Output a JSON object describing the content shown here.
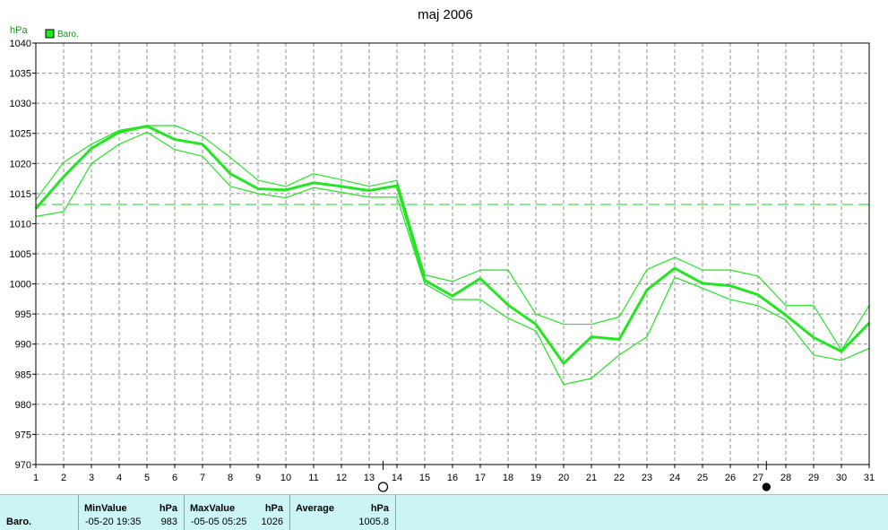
{
  "chart_data": {
    "type": "line",
    "title": "maj 2006",
    "ylabel": "hPa",
    "ylim": [
      970,
      1040
    ],
    "ystep": 5,
    "x": [
      1,
      2,
      3,
      4,
      5,
      6,
      7,
      8,
      9,
      10,
      11,
      12,
      13,
      14,
      15,
      16,
      17,
      18,
      19,
      20,
      21,
      22,
      23,
      24,
      25,
      26,
      27,
      28,
      29,
      30,
      31
    ],
    "legend": [
      "Baro."
    ],
    "grid": true,
    "series": [
      {
        "name": "Baro.",
        "role": "avg",
        "values": [
          1012.5,
          1017.8,
          1022.5,
          1025.2,
          1026.2,
          1024.0,
          1023.2,
          1018.3,
          1015.8,
          1015.6,
          1016.8,
          1016.2,
          1015.5,
          1016.3,
          1000.6,
          998.0,
          1000.9,
          996.5,
          993.3,
          986.8,
          991.2,
          990.8,
          999.0,
          1002.6,
          1000.1,
          999.7,
          998.2,
          994.8,
          991.1,
          988.8,
          993.5
        ]
      },
      {
        "role": "max",
        "values": [
          1014.0,
          1020.2,
          1023.2,
          1025.5,
          1026.3,
          1026.3,
          1024.5,
          1021.0,
          1017.2,
          1016.2,
          1018.3,
          1017.3,
          1016.2,
          1017.2,
          1001.5,
          1000.4,
          1002.3,
          1002.3,
          995.0,
          993.3,
          993.3,
          994.5,
          1002.4,
          1004.4,
          1002.3,
          1002.3,
          1001.3,
          996.4,
          996.4,
          989.0,
          996.4
        ]
      },
      {
        "role": "min",
        "values": [
          1011.2,
          1012.0,
          1020.0,
          1023.2,
          1025.2,
          1022.3,
          1021.2,
          1016.2,
          1015.0,
          1014.3,
          1016.0,
          1015.2,
          1014.4,
          1014.4,
          1000.0,
          997.4,
          997.4,
          994.3,
          992.2,
          983.3,
          984.3,
          988.2,
          991.2,
          1001.1,
          999.3,
          997.4,
          996.4,
          994.0,
          988.2,
          987.3,
          989.3
        ]
      }
    ],
    "average_line": 1013.2,
    "markers": [
      {
        "type": "open-circle",
        "x": 13.5
      },
      {
        "type": "filled-circle",
        "x": 27.3
      }
    ],
    "colors": {
      "series": "#22e622",
      "grid": "#909090",
      "axis": "#000000",
      "unit": "#119911"
    }
  },
  "stats": {
    "row_label": "Baro.",
    "min": {
      "header": "MinValue",
      "unit": "hPa",
      "time": "-05-20  19:35",
      "value": "983"
    },
    "max": {
      "header": "MaxValue",
      "unit": "hPa",
      "time": "-05-05  05:25",
      "value": "1026"
    },
    "avg": {
      "header": "Average",
      "unit": "hPa",
      "value": "1005.8"
    }
  }
}
